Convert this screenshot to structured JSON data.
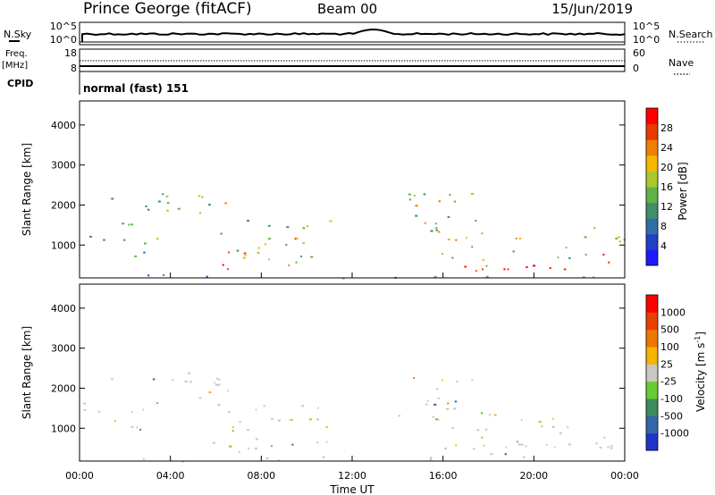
{
  "header": {
    "station": "Prince George (fitACF)",
    "beam": "Beam 00",
    "date": "15/Jun/2019"
  },
  "noise_panel": {
    "left_label": "N.Sky",
    "right_label": "N.Search",
    "left_ticks": [
      "10^5",
      "10^0"
    ],
    "right_ticks": [
      "10^5",
      "10^0"
    ]
  },
  "freq_panel": {
    "left_label_1": "Freq.",
    "left_label_2": "[MHz]",
    "right_label": "Nave",
    "left_ticks": [
      "18",
      "8"
    ],
    "right_ticks": [
      "60",
      "0"
    ]
  },
  "cpid": {
    "label": "CPID",
    "value": "normal (fast) 151"
  },
  "chart_data": [
    {
      "type": "heatmap",
      "quantity": "Power",
      "ylabel": "Slant Range [km]",
      "yticks": [
        "1000",
        "2000",
        "3000",
        "4000"
      ],
      "ylim": [
        180,
        4600
      ],
      "colorbar": {
        "label": "Power [dB]",
        "ticks": [
          "4",
          "8",
          "12",
          "16",
          "20",
          "24",
          "28"
        ],
        "colors": [
          "#1a1aff",
          "#2040c8",
          "#2f6fa8",
          "#3f8f6a",
          "#62b24a",
          "#a8c830",
          "#f5b800",
          "#f08000",
          "#e83a00",
          "#ff0000"
        ]
      }
    },
    {
      "type": "heatmap",
      "quantity": "Velocity",
      "ylabel": "Slant Range [km]",
      "yticks": [
        "1000",
        "2000",
        "3000",
        "4000"
      ],
      "ylim": [
        180,
        4600
      ],
      "colorbar": {
        "label": "Velocity [m s",
        "label_sup": "-1",
        "label_end": "]",
        "ticks": [
          "1000",
          "500",
          "100",
          "25",
          "-25",
          "-100",
          "-500",
          "-1000"
        ],
        "colors": [
          "#2233cc",
          "#3366aa",
          "#3d8a5c",
          "#66cc33",
          "#c8c8c0",
          "#f5b400",
          "#ee7700",
          "#e84000",
          "#ff0000"
        ]
      }
    }
  ],
  "x_axis": {
    "label": "Time UT",
    "ticks": [
      "00:00",
      "04:00",
      "08:00",
      "12:00",
      "16:00",
      "20:00",
      "00:00"
    ]
  }
}
